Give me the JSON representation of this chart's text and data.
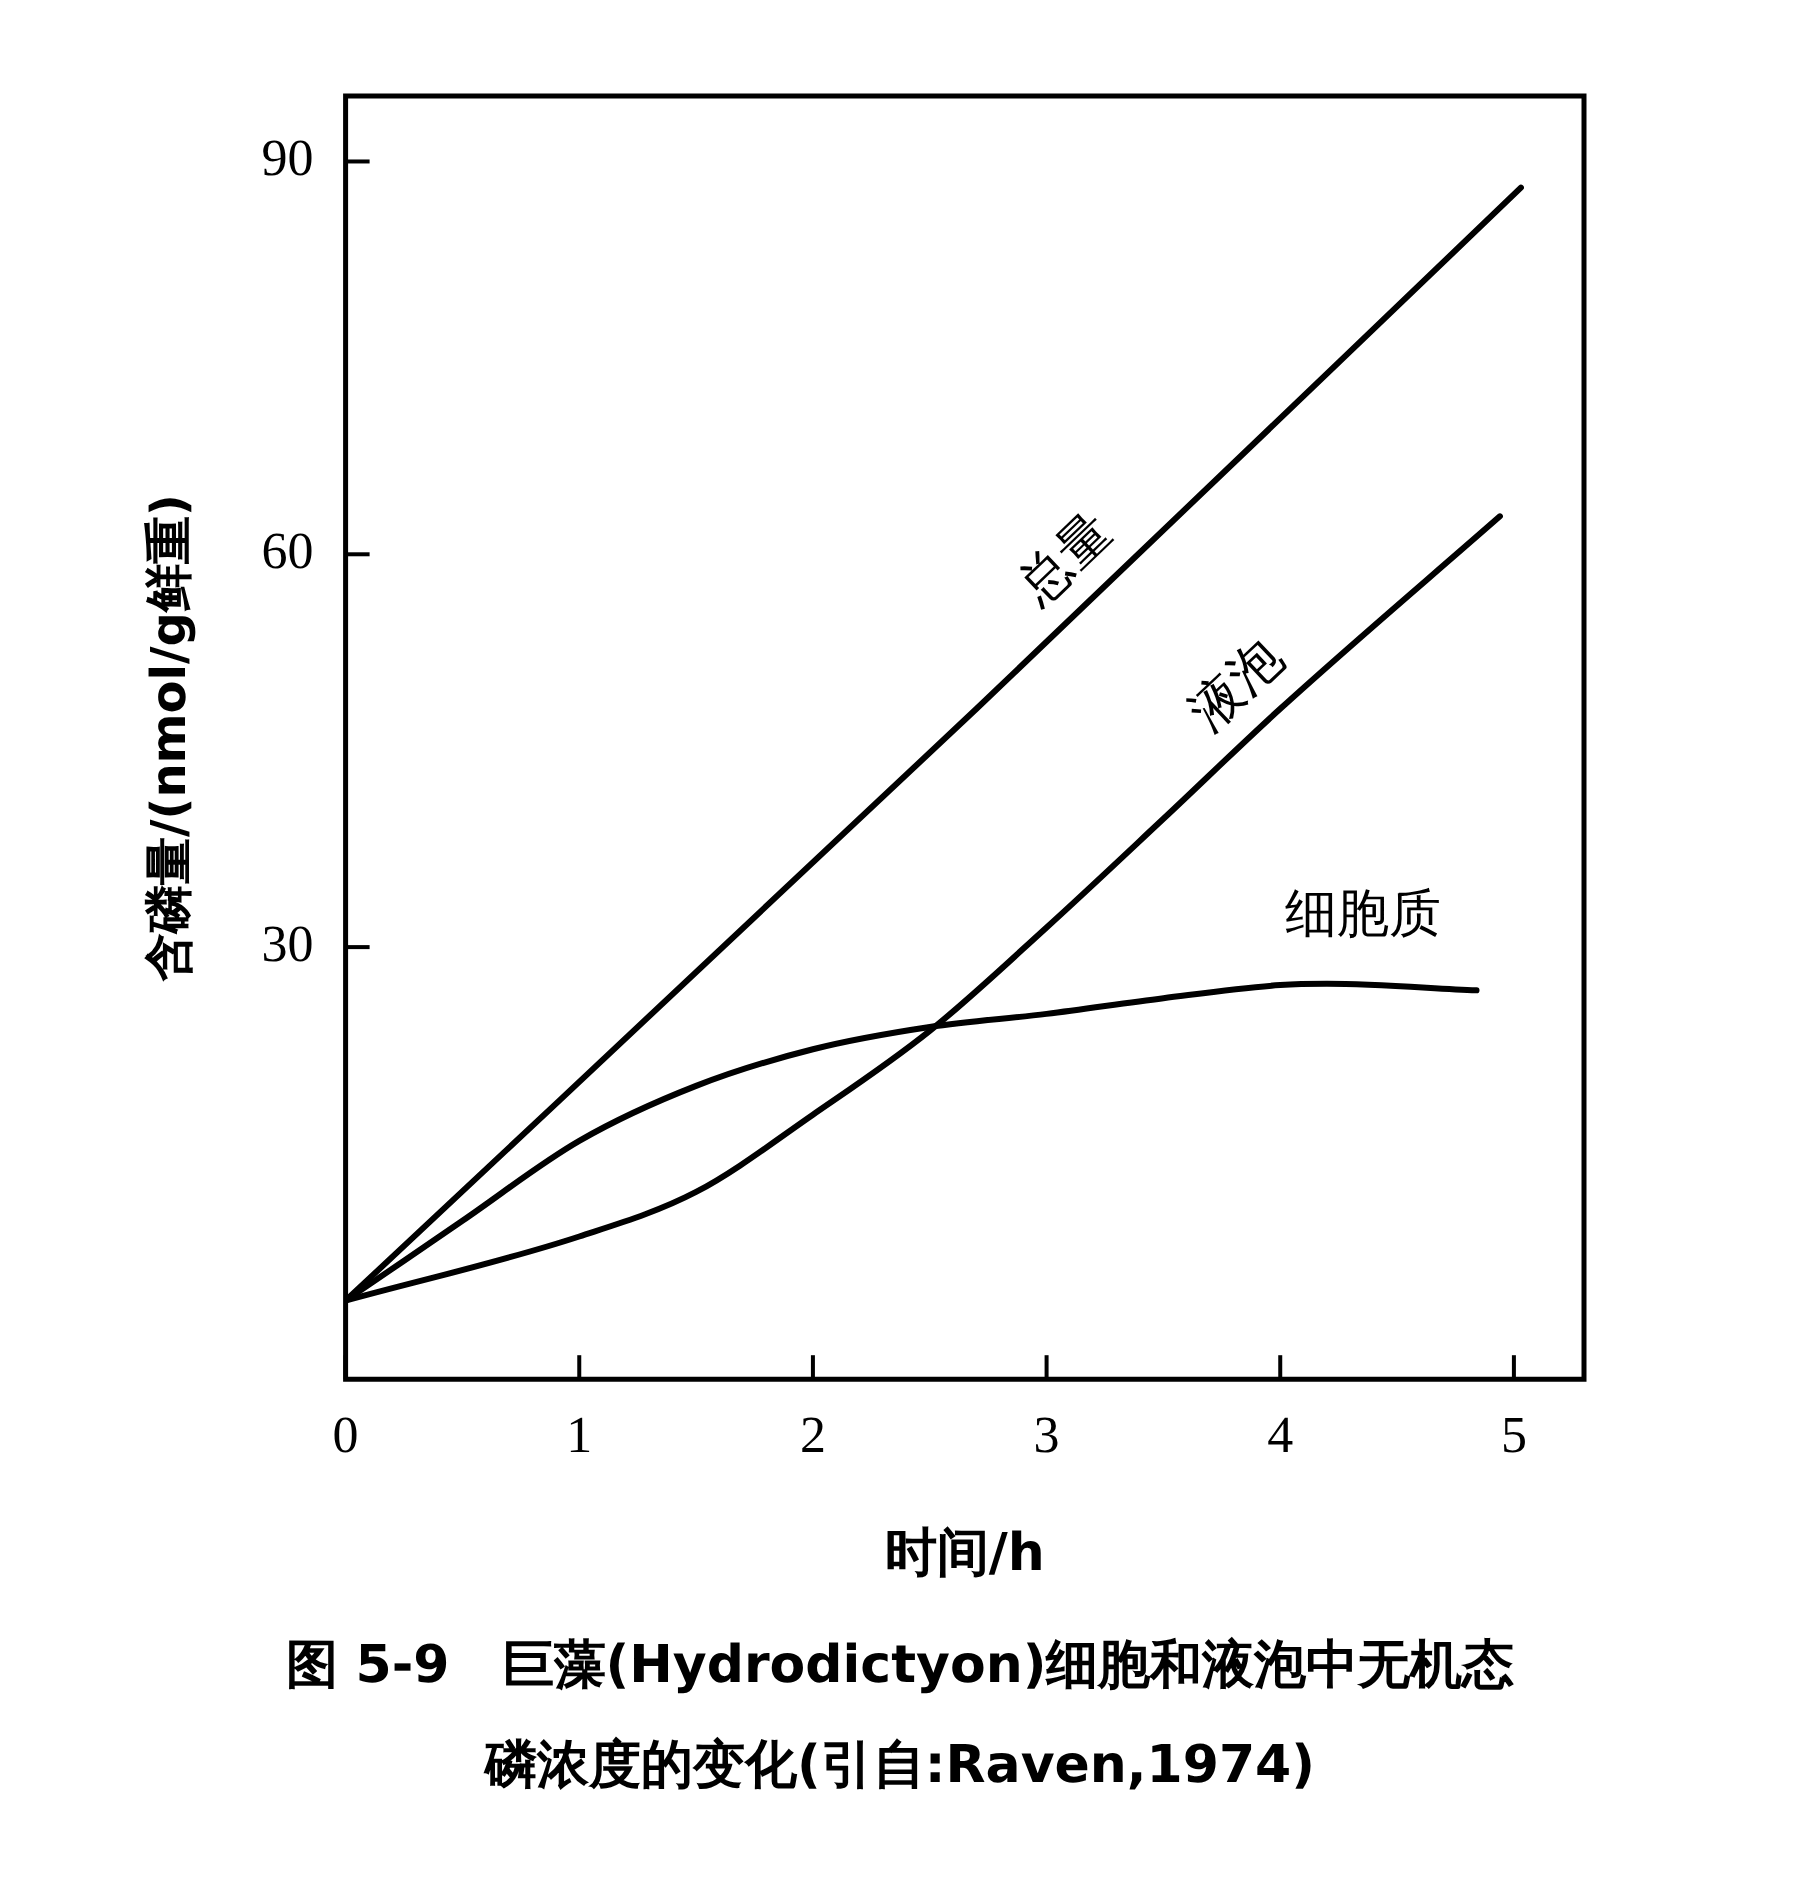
{
  "chart_data": {
    "type": "line",
    "title": "图 5-9　巨藻(Hydrodictyon)细胞和液泡中无机态磷浓度的变化(引自:Raven,1974)",
    "xlabel": "时间/h",
    "ylabel": "含磷量/(nmol/g鲜重)",
    "xlim": [
      0,
      5.3
    ],
    "xticks": [
      0,
      1,
      2,
      3,
      4,
      5
    ],
    "ylim": [
      -3,
      95
    ],
    "yticks": [
      30,
      60,
      90
    ],
    "series": [
      {
        "name": "总量",
        "color": "#000000",
        "x": [
          0,
          2.7,
          5.03
        ],
        "values": [
          3,
          48.2,
          88
        ]
      },
      {
        "name": "液泡",
        "color": "#000000",
        "x": [
          0,
          1,
          1.5,
          2,
          2.5,
          3,
          3.5,
          4,
          4.94
        ],
        "values": [
          3,
          7.9,
          11.3,
          17.2,
          23.6,
          31.5,
          39.8,
          48.2,
          62.9
        ]
      },
      {
        "name": "细胞质",
        "color": "#000000",
        "x": [
          0,
          0.5,
          1,
          1.5,
          2,
          2.5,
          3,
          3.5,
          4,
          4.2,
          4.84
        ],
        "values": [
          3,
          9.1,
          15.2,
          19.4,
          22.2,
          23.9,
          24.9,
          26.1,
          27.1,
          27.2,
          26.7
        ]
      }
    ]
  }
}
